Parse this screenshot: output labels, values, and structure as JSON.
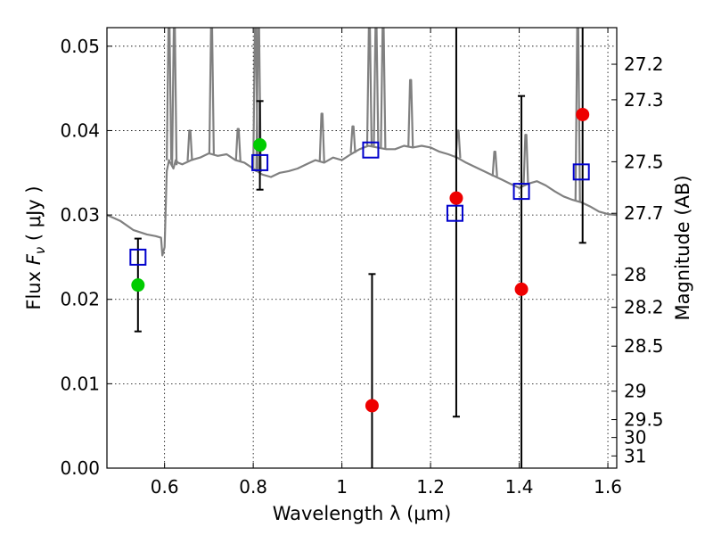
{
  "chart_data": {
    "type": "scatter",
    "xlabel": "Wavelength  λ (μm)",
    "ylabel": "Flux  F_ν  ( μJy )",
    "ylabel_right": "Magnitude (AB)",
    "xlim": [
      0.47,
      1.62
    ],
    "ylim": [
      0.0,
      0.0522
    ],
    "x_ticks": [
      0.6,
      0.8,
      1,
      1.2,
      1.4,
      1.6
    ],
    "x_tick_labels": [
      "0.6",
      "0.8",
      "1",
      "1.2",
      "1.4",
      "1.6"
    ],
    "y_ticks": [
      0.0,
      0.01,
      0.02,
      0.03,
      0.04,
      0.05
    ],
    "y_tick_labels": [
      "0.00",
      "0.01",
      "0.02",
      "0.03",
      "0.04",
      "0.05"
    ],
    "mag_ticks": [
      27.2,
      27.3,
      27.5,
      27.7,
      28,
      28.2,
      28.5,
      29,
      29.5,
      30,
      31
    ],
    "mag_tick_labels": [
      "27.2",
      "27.3",
      "27.5",
      "27.7",
      "28",
      "28.2",
      "28.5",
      "29",
      "29.5",
      "30",
      "31"
    ],
    "grid": true,
    "series": [
      {
        "style": "line",
        "color": "#808080",
        "x": [
          0.47,
          0.5,
          0.53,
          0.56,
          0.58,
          0.592,
          0.595,
          0.6,
          0.605,
          0.61,
          0.615,
          0.62,
          0.625,
          0.63,
          0.64,
          0.66,
          0.68,
          0.7,
          0.72,
          0.74,
          0.76,
          0.78,
          0.8,
          0.82,
          0.84,
          0.86,
          0.88,
          0.9,
          0.92,
          0.94,
          0.96,
          0.98,
          1.0,
          1.02,
          1.04,
          1.06,
          1.08,
          1.1,
          1.12,
          1.14,
          1.16,
          1.18,
          1.2,
          1.22,
          1.24,
          1.26,
          1.28,
          1.3,
          1.32,
          1.34,
          1.36,
          1.38,
          1.4,
          1.42,
          1.44,
          1.46,
          1.48,
          1.5,
          1.52,
          1.54,
          1.56,
          1.58,
          1.6,
          1.62
        ],
        "y": [
          0.03,
          0.0293,
          0.0282,
          0.0277,
          0.0275,
          0.0273,
          0.0252,
          0.0262,
          0.0352,
          0.0365,
          0.036,
          0.0355,
          0.0365,
          0.0362,
          0.036,
          0.0365,
          0.0368,
          0.0373,
          0.037,
          0.0372,
          0.0365,
          0.0362,
          0.0355,
          0.0348,
          0.0345,
          0.035,
          0.0352,
          0.0355,
          0.036,
          0.0365,
          0.0362,
          0.0368,
          0.0365,
          0.0372,
          0.0378,
          0.0382,
          0.038,
          0.0378,
          0.0378,
          0.0382,
          0.038,
          0.0382,
          0.038,
          0.0375,
          0.0372,
          0.0368,
          0.0362,
          0.0357,
          0.0352,
          0.0347,
          0.0342,
          0.0337,
          0.0332,
          0.0337,
          0.034,
          0.0335,
          0.0328,
          0.0322,
          0.0318,
          0.0315,
          0.031,
          0.0304,
          0.0301,
          0.03
        ]
      },
      {
        "style": "spikes",
        "color": "#808080",
        "x": [
          0.61,
          0.622,
          0.657,
          0.706,
          0.766,
          0.805,
          0.812,
          0.955,
          1.025,
          1.062,
          1.077,
          1.093,
          1.155,
          1.262,
          1.345,
          1.415,
          1.532
        ],
        "y": [
          0.0522,
          0.0522,
          0.04,
          0.0522,
          0.0402,
          0.0522,
          0.0522,
          0.042,
          0.0405,
          0.0522,
          0.0522,
          0.0522,
          0.046,
          0.04,
          0.0375,
          0.0395,
          0.0522
        ]
      },
      {
        "style": "square",
        "color": "#0000cc",
        "x": [
          0.54,
          0.815,
          1.065,
          1.255,
          1.405,
          1.54
        ],
        "y": [
          0.025,
          0.0362,
          0.0377,
          0.0302,
          0.0328,
          0.0351
        ]
      },
      {
        "style": "circle",
        "color": "#00cc00",
        "x": [
          0.54,
          0.815
        ],
        "y": [
          0.0217,
          0.0383
        ]
      },
      {
        "style": "circle",
        "color": "#ee0000",
        "x": [
          1.068,
          1.258,
          1.405,
          1.543
        ],
        "y": [
          0.0074,
          0.032,
          0.0212,
          0.0419
        ]
      },
      {
        "style": "errorbar",
        "color": "#000000",
        "x": [
          0.54,
          0.815,
          1.068,
          1.258,
          1.405,
          1.543
        ],
        "y_low": [
          0.0162,
          0.033,
          0.0,
          0.0061,
          0.0,
          0.0267
        ],
        "y_high": [
          0.0272,
          0.0435,
          0.023,
          0.0522,
          0.0441,
          0.0522
        ]
      }
    ]
  }
}
